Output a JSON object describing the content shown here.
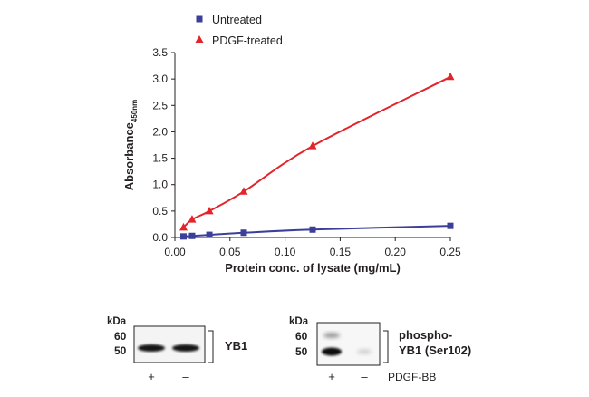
{
  "chart_data": {
    "type": "line",
    "xlabel": "Protein conc. of lysate (mg/mL)",
    "ylabel_main": "Absorbance",
    "ylabel_sub": "450nm",
    "xlim": [
      0.0,
      0.25
    ],
    "ylim": [
      0.0,
      3.5
    ],
    "xticks": [
      "0.00",
      "0.05",
      "0.10",
      "0.15",
      "0.20",
      "0.25"
    ],
    "yticks": [
      "0.0",
      "0.5",
      "1.0",
      "1.5",
      "2.0",
      "2.5",
      "3.0",
      "3.5"
    ],
    "legend_position": "top-left",
    "grid": false,
    "series": [
      {
        "name": "Untreated",
        "marker": "square",
        "color": "#3b3f9a",
        "x": [
          0.0078,
          0.0156,
          0.0313,
          0.0625,
          0.125,
          0.25
        ],
        "y": [
          0.02,
          0.03,
          0.05,
          0.09,
          0.15,
          0.22
        ]
      },
      {
        "name": "PDGF-treated",
        "marker": "triangle",
        "color": "#e3242b",
        "x": [
          0.0078,
          0.0156,
          0.0313,
          0.0625,
          0.125,
          0.25
        ],
        "y": [
          0.19,
          0.34,
          0.5,
          0.87,
          1.73,
          3.04
        ]
      }
    ]
  },
  "blots": [
    {
      "kda_label": "kDa",
      "markers": [
        "60",
        "50"
      ],
      "protein_label": [
        "YB1"
      ],
      "lanes": [
        "+",
        "–"
      ],
      "condition_label": ""
    },
    {
      "kda_label": "kDa",
      "markers": [
        "60",
        "50"
      ],
      "protein_label": [
        "phospho-",
        "YB1 (Ser102)"
      ],
      "lanes": [
        "+",
        "–"
      ],
      "condition_label": "PDGF-BB"
    }
  ]
}
